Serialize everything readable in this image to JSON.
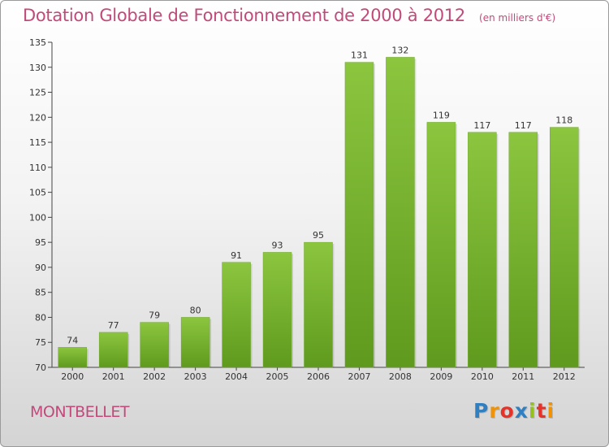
{
  "chart_data": {
    "type": "bar",
    "title": "Dotation Globale de Fonctionnement de 2000 à 2012",
    "subtitle": "(en milliers d'€)",
    "categories": [
      "2000",
      "2001",
      "2002",
      "2003",
      "2004",
      "2005",
      "2006",
      "2007",
      "2008",
      "2009",
      "2010",
      "2011",
      "2012"
    ],
    "values": [
      74,
      77,
      79,
      80,
      91,
      93,
      95,
      131,
      132,
      119,
      117,
      117,
      118
    ],
    "ylim": [
      70,
      135
    ],
    "yticks": [
      70,
      75,
      80,
      85,
      90,
      95,
      100,
      105,
      110,
      115,
      120,
      125,
      130,
      135
    ],
    "xlabel": "",
    "ylabel": "",
    "grid": false,
    "bar_color": "#8cc63f",
    "bar_color_dark": "#5f9a1e"
  },
  "footer": {
    "commune": "MONTBELLET",
    "logo_letters": [
      "P",
      "r",
      "o",
      "x",
      "i",
      "t",
      "i"
    ],
    "logo_colors": [
      "#2f7fc1",
      "#f39200",
      "#e6332a",
      "#2f7fc1",
      "#95c11f",
      "#e6332a",
      "#f39200"
    ]
  },
  "colors": {
    "title": "#c14a7a",
    "axis": "#333333"
  }
}
